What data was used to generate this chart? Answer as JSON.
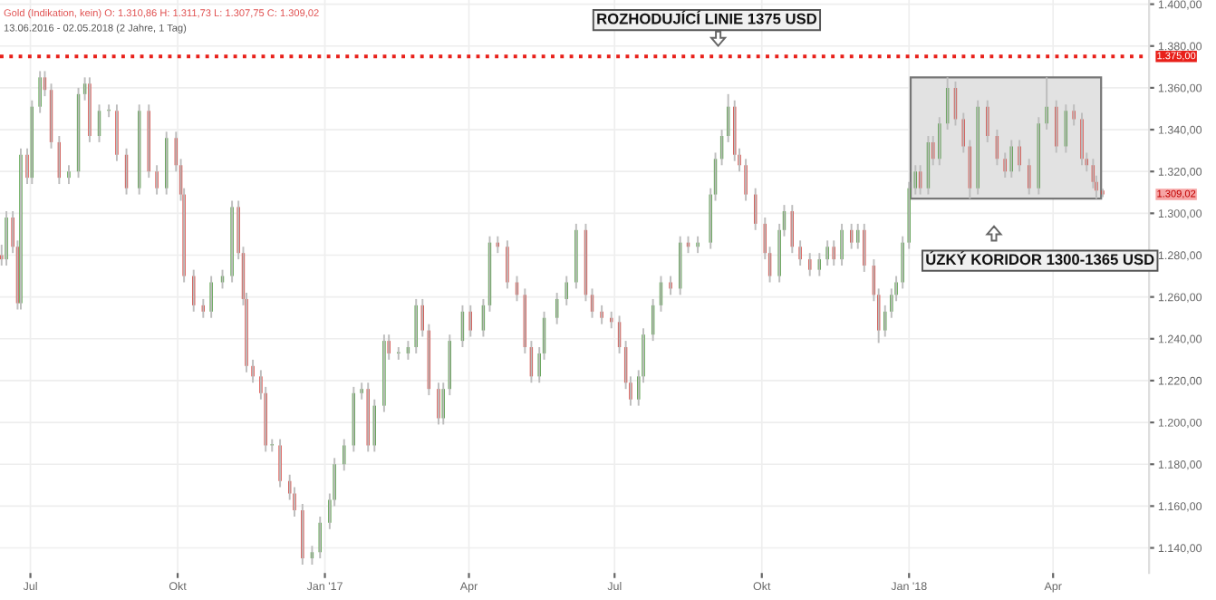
{
  "chart_data": {
    "type": "candlestick",
    "title": "Gold (Indikation, kein) O: 1.310,86 H: 1.311,73 L: 1.307,75 C: 1.309,02",
    "subtitle": "13.06.2016 - 02.05.2018 (2 Jahre, 1 Tag)",
    "colors": [
      "#d9403a",
      "#4a9a3a",
      "#d9403a",
      "#d9403a",
      "#4a9a3a",
      "#d9403a",
      "#4a9a3a",
      "#4a9a3a",
      "#d9403a",
      "#d9403a",
      "#d9403a",
      "#4a9a3a",
      "#4a9a3a",
      "#4a9a3a",
      "#d9403a",
      "#4a9a3a",
      "#4a9a3a",
      "#d9403a",
      "#d9403a",
      "#4a9a3a",
      "#d9403a",
      "#d9403a",
      "#4a9a3a",
      "#d9403a",
      "#d9403a",
      "#d9403a",
      "#d9403a",
      "#d9403a",
      "#4a9a3a",
      "#4a9a3a",
      "#4a9a3a",
      "#d9403a",
      "#d9403a",
      "#d9403a",
      "#d9403a",
      "#d9403a",
      "#d9403a",
      "#4a9a3a",
      "#d9403a",
      "#d9403a",
      "#d9403a",
      "#d9403a",
      "#4a9a3a",
      "#4a9a3a",
      "#4a9a3a",
      "#4a9a3a",
      "#4a9a3a",
      "#4a9a3a",
      "#4a9a3a",
      "#d9403a",
      "#4a9a3a",
      "#4a9a3a",
      "#d9403a",
      "#4a9a3a",
      "#4a9a3a",
      "#4a9a3a",
      "#d9403a",
      "#d9403a",
      "#d9403a",
      "#4a9a3a",
      "#4a9a3a",
      "#4a9a3a",
      "#d9403a",
      "#4a9a3a",
      "#4a9a3a",
      "#d9403a",
      "#d9403a",
      "#d9403a",
      "#d9403a",
      "#d9403a",
      "#4a9a3a",
      "#4a9a3a",
      "#4a9a3a",
      "#4a9a3a",
      "#4a9a3a",
      "#d9403a",
      "#d9403a",
      "#d9403a",
      "#d9403a",
      "#d9403a",
      "#d9403a",
      "#d9403a",
      "#4a9a3a",
      "#4a9a3a",
      "#4a9a3a",
      "#4a9a3a",
      "#d9403a",
      "#4a9a3a",
      "#d9403a",
      "#4a9a3a",
      "#4a9a3a",
      "#4a9a3a",
      "#4a9a3a",
      "#4a9a3a",
      "#d9403a",
      "#d9403a",
      "#d9403a",
      "#d9403a",
      "#d9403a",
      "#d9403a",
      "#4a9a3a",
      "#4a9a3a",
      "#d9403a",
      "#d9403a",
      "#d9403a",
      "#4a9a3a",
      "#4a9a3a",
      "#d9403a",
      "#4a9a3a",
      "#d9403a",
      "#4a9a3a",
      "#d9403a",
      "#d9403a",
      "#d9403a",
      "#4a9a3a",
      "#4a9a3a",
      "#4a9a3a",
      "#4a9a3a",
      "#4a9a3a",
      "#4a9a3a",
      "#d9403a",
      "#4a9a3a",
      "#d9403a",
      "#4a9a3a",
      "#4a9a3a",
      "#d9403a",
      "#d9403a",
      "#d9403a",
      "#4a9a3a",
      "#d9403a",
      "#d9403a",
      "#d9403a",
      "#4a9a3a",
      "#d9403a",
      "#d9403a",
      "#4a9a3a",
      "#4a9a3a",
      "#d9403a",
      "#4a9a3a",
      "#d9403a",
      "#d9403a",
      "#d9403a",
      "#d9403a",
      "#d9403a",
      "#d9403a"
    ],
    "xlim": [
      "2016-06-12",
      "2018-05-31"
    ],
    "xticks": [
      {
        "value": "2016-07-01",
        "label": "Jul"
      },
      {
        "value": "2016-10-01",
        "label": "Okt"
      },
      {
        "value": "2017-01-01",
        "label": "Jan '17"
      },
      {
        "value": "2017-04-01",
        "label": "Apr"
      },
      {
        "value": "2017-07-01",
        "label": "Jul"
      },
      {
        "value": "2017-10-01",
        "label": "Okt"
      },
      {
        "value": "2018-01-01",
        "label": "Jan '18"
      },
      {
        "value": "2018-04-01",
        "label": "Apr"
      }
    ],
    "ylim": [
      1128,
      1402
    ],
    "yticks": [
      {
        "value": 1140,
        "label": "1.140,00"
      },
      {
        "value": 1160,
        "label": "1.160,00"
      },
      {
        "value": 1180,
        "label": "1.180,00"
      },
      {
        "value": 1200,
        "label": "1.200,00"
      },
      {
        "value": 1220,
        "label": "1.220,00"
      },
      {
        "value": 1240,
        "label": "1.240,00"
      },
      {
        "value": 1260,
        "label": "1.260,00"
      },
      {
        "value": 1280,
        "label": "1.280,00"
      },
      {
        "value": 1300,
        "label": "1.300,00"
      },
      {
        "value": 1320,
        "label": "1.320,00"
      },
      {
        "value": 1340,
        "label": "1.340,00"
      },
      {
        "value": 1360,
        "label": "1.360,00"
      },
      {
        "value": 1380,
        "label": "1.380,00"
      },
      {
        "value": 1400,
        "label": "1.400,00"
      }
    ],
    "grid": true,
    "ref_lines": [
      {
        "axis": "y",
        "value": 1375,
        "label": "1.375,00",
        "color": "#e8201a",
        "line_style": "dotted"
      }
    ],
    "bands": [
      {
        "axis": "x",
        "from": "2018-01-02",
        "to": "2018-05-01",
        "color": "#e2e2e2"
      }
    ],
    "annotations": [
      "ROZHODUJÍCÍ LINIE 1375 USD",
      "ÚZKÝ KORIDOR 1300-1365 USD",
      "1.309,02"
    ],
    "x": [
      "2016-06-13",
      "2016-06-16",
      "2016-06-20",
      "2016-06-23",
      "2016-06-25",
      "2016-06-29",
      "2016-07-02",
      "2016-07-07",
      "2016-07-10",
      "2016-07-14",
      "2016-07-19",
      "2016-07-25",
      "2016-07-31",
      "2016-08-04",
      "2016-08-07",
      "2016-08-13",
      "2016-08-19",
      "2016-08-24",
      "2016-08-30",
      "2016-09-07",
      "2016-09-13",
      "2016-09-18",
      "2016-09-24",
      "2016-09-30",
      "2016-10-03",
      "2016-10-05",
      "2016-10-11",
      "2016-10-17",
      "2016-10-22",
      "2016-10-29",
      "2016-11-04",
      "2016-11-08",
      "2016-11-11",
      "2016-11-13",
      "2016-11-17",
      "2016-11-22",
      "2016-11-25",
      "2016-11-29",
      "2016-12-04",
      "2016-12-10",
      "2016-12-13",
      "2016-12-18",
      "2016-12-24",
      "2016-12-29",
      "2017-01-04",
      "2017-01-07",
      "2017-01-13",
      "2017-01-19",
      "2017-01-24",
      "2017-01-28",
      "2017-02-01",
      "2017-02-07",
      "2017-02-10",
      "2017-02-16",
      "2017-02-22",
      "2017-02-27",
      "2017-03-03",
      "2017-03-07",
      "2017-03-13",
      "2017-03-16",
      "2017-03-20",
      "2017-03-28",
      "2017-04-02",
      "2017-04-10",
      "2017-04-14",
      "2017-04-19",
      "2017-04-25",
      "2017-05-01",
      "2017-05-06",
      "2017-05-10",
      "2017-05-15",
      "2017-05-18",
      "2017-05-26",
      "2017-06-01",
      "2017-06-07",
      "2017-06-13",
      "2017-06-17",
      "2017-06-23",
      "2017-06-29",
      "2017-07-04",
      "2017-07-08",
      "2017-07-11",
      "2017-07-16",
      "2017-07-19",
      "2017-07-25",
      "2017-07-30",
      "2017-08-05",
      "2017-08-11",
      "2017-08-16",
      "2017-08-22",
      "2017-08-30",
      "2017-09-02",
      "2017-09-06",
      "2017-09-10",
      "2017-09-14",
      "2017-09-17",
      "2017-09-21",
      "2017-09-27",
      "2017-10-03",
      "2017-10-06",
      "2017-10-12",
      "2017-10-15",
      "2017-10-20",
      "2017-10-25",
      "2017-10-31",
      "2017-11-06",
      "2017-11-11",
      "2017-11-15",
      "2017-11-20",
      "2017-11-26",
      "2017-11-30",
      "2017-12-04",
      "2017-12-10",
      "2017-12-13",
      "2017-12-17",
      "2017-12-21",
      "2017-12-24",
      "2017-12-28",
      "2018-01-01",
      "2018-01-05",
      "2018-01-08",
      "2018-01-13",
      "2018-01-16",
      "2018-01-20",
      "2018-01-25",
      "2018-01-30",
      "2018-02-04",
      "2018-02-08",
      "2018-02-13",
      "2018-02-19",
      "2018-02-25",
      "2018-03-02",
      "2018-03-06",
      "2018-03-11",
      "2018-03-17",
      "2018-03-23",
      "2018-03-28",
      "2018-04-03",
      "2018-04-09",
      "2018-04-14",
      "2018-04-19",
      "2018-04-22",
      "2018-04-26",
      "2018-04-28",
      "2018-05-02"
    ],
    "ohlc": [
      [
        1280,
        1285,
        1275,
        1278
      ],
      [
        1278,
        1301,
        1275,
        1298
      ],
      [
        1298,
        1301,
        1281,
        1284
      ],
      [
        1284,
        1287,
        1254,
        1257
      ],
      [
        1257,
        1331,
        1254,
        1328
      ],
      [
        1328,
        1331,
        1314,
        1317
      ],
      [
        1317,
        1354,
        1314,
        1351
      ],
      [
        1351,
        1368,
        1348,
        1365
      ],
      [
        1365,
        1368,
        1356,
        1359
      ],
      [
        1359,
        1362,
        1331,
        1334
      ],
      [
        1334,
        1337,
        1314,
        1317
      ],
      [
        1317,
        1323,
        1314,
        1320
      ],
      [
        1320,
        1360,
        1317,
        1357
      ],
      [
        1357,
        1365,
        1354,
        1362
      ],
      [
        1362,
        1365,
        1334,
        1337
      ],
      [
        1337,
        1352,
        1334,
        1349
      ],
      [
        1349,
        1352,
        1346,
        1349
      ],
      [
        1349,
        1352,
        1325,
        1328
      ],
      [
        1328,
        1331,
        1309,
        1312
      ],
      [
        1312,
        1352,
        1309,
        1349
      ],
      [
        1349,
        1352,
        1317,
        1320
      ],
      [
        1320,
        1323,
        1309,
        1312
      ],
      [
        1312,
        1339,
        1309,
        1336
      ],
      [
        1336,
        1339,
        1320,
        1323
      ],
      [
        1323,
        1326,
        1306,
        1309
      ],
      [
        1309,
        1312,
        1267,
        1270
      ],
      [
        1270,
        1273,
        1253,
        1256
      ],
      [
        1256,
        1259,
        1250,
        1253
      ],
      [
        1253,
        1270,
        1250,
        1267
      ],
      [
        1267,
        1273,
        1264,
        1270
      ],
      [
        1270,
        1306,
        1267,
        1303
      ],
      [
        1303,
        1306,
        1278,
        1281
      ],
      [
        1281,
        1284,
        1256,
        1259
      ],
      [
        1259,
        1262,
        1224,
        1227
      ],
      [
        1227,
        1230,
        1219,
        1222
      ],
      [
        1222,
        1225,
        1211,
        1214
      ],
      [
        1214,
        1217,
        1186,
        1189
      ],
      [
        1189,
        1192,
        1186,
        1189
      ],
      [
        1189,
        1192,
        1169,
        1172
      ],
      [
        1172,
        1175,
        1163,
        1166
      ],
      [
        1166,
        1169,
        1155,
        1158
      ],
      [
        1158,
        1161,
        1132,
        1135
      ],
      [
        1135,
        1141,
        1132,
        1138
      ],
      [
        1138,
        1155,
        1135,
        1152
      ],
      [
        1152,
        1166,
        1149,
        1163
      ],
      [
        1163,
        1183,
        1160,
        1180
      ],
      [
        1180,
        1192,
        1177,
        1189
      ],
      [
        1189,
        1217,
        1186,
        1214
      ],
      [
        1214,
        1219,
        1211,
        1216
      ],
      [
        1216,
        1219,
        1186,
        1189
      ],
      [
        1189,
        1211,
        1186,
        1208
      ],
      [
        1208,
        1242,
        1205,
        1239
      ],
      [
        1239,
        1242,
        1230,
        1233
      ],
      [
        1233,
        1236,
        1230,
        1233
      ],
      [
        1233,
        1239,
        1230,
        1236
      ],
      [
        1236,
        1259,
        1233,
        1256
      ],
      [
        1256,
        1259,
        1241,
        1244
      ],
      [
        1244,
        1247,
        1213,
        1216
      ],
      [
        1216,
        1219,
        1199,
        1202
      ],
      [
        1202,
        1219,
        1199,
        1216
      ],
      [
        1216,
        1242,
        1213,
        1239
      ],
      [
        1239,
        1256,
        1236,
        1253
      ],
      [
        1253,
        1256,
        1241,
        1244
      ],
      [
        1244,
        1259,
        1241,
        1256
      ],
      [
        1256,
        1289,
        1253,
        1286
      ],
      [
        1286,
        1289,
        1281,
        1284
      ],
      [
        1284,
        1287,
        1264,
        1267
      ],
      [
        1267,
        1270,
        1258,
        1261
      ],
      [
        1261,
        1264,
        1233,
        1236
      ],
      [
        1236,
        1239,
        1219,
        1222
      ],
      [
        1222,
        1236,
        1219,
        1233
      ],
      [
        1233,
        1253,
        1230,
        1250
      ],
      [
        1250,
        1262,
        1247,
        1259
      ],
      [
        1259,
        1270,
        1256,
        1267
      ],
      [
        1267,
        1295,
        1264,
        1292
      ],
      [
        1292,
        1295,
        1258,
        1261
      ],
      [
        1261,
        1264,
        1250,
        1253
      ],
      [
        1253,
        1256,
        1247,
        1250
      ],
      [
        1250,
        1253,
        1245,
        1248
      ],
      [
        1248,
        1251,
        1233,
        1236
      ],
      [
        1236,
        1239,
        1216,
        1219
      ],
      [
        1219,
        1222,
        1208,
        1211
      ],
      [
        1211,
        1225,
        1208,
        1222
      ],
      [
        1222,
        1245,
        1219,
        1242
      ],
      [
        1242,
        1259,
        1239,
        1256
      ],
      [
        1256,
        1270,
        1253,
        1267
      ],
      [
        1267,
        1270,
        1261,
        1264
      ],
      [
        1264,
        1289,
        1261,
        1286
      ],
      [
        1286,
        1289,
        1281,
        1284
      ],
      [
        1284,
        1289,
        1281,
        1286
      ],
      [
        1286,
        1312,
        1283,
        1309
      ],
      [
        1309,
        1329,
        1306,
        1326
      ],
      [
        1326,
        1340,
        1323,
        1337
      ],
      [
        1337,
        1357,
        1334,
        1351
      ],
      [
        1351,
        1354,
        1325,
        1328
      ],
      [
        1328,
        1331,
        1320,
        1323
      ],
      [
        1323,
        1326,
        1306,
        1309
      ],
      [
        1309,
        1312,
        1292,
        1295
      ],
      [
        1295,
        1298,
        1278,
        1281
      ],
      [
        1281,
        1284,
        1267,
        1270
      ],
      [
        1270,
        1295,
        1267,
        1292
      ],
      [
        1292,
        1304,
        1289,
        1301
      ],
      [
        1301,
        1304,
        1281,
        1284
      ],
      [
        1284,
        1287,
        1275,
        1278
      ],
      [
        1278,
        1281,
        1270,
        1273
      ],
      [
        1273,
        1281,
        1270,
        1278
      ],
      [
        1278,
        1287,
        1275,
        1284
      ],
      [
        1284,
        1287,
        1275,
        1278
      ],
      [
        1278,
        1295,
        1275,
        1292
      ],
      [
        1292,
        1295,
        1283,
        1286
      ],
      [
        1286,
        1295,
        1283,
        1292
      ],
      [
        1292,
        1295,
        1272,
        1275
      ],
      [
        1275,
        1278,
        1258,
        1261
      ],
      [
        1261,
        1264,
        1238,
        1244
      ],
      [
        1244,
        1256,
        1241,
        1253
      ],
      [
        1253,
        1264,
        1250,
        1261
      ],
      [
        1261,
        1270,
        1258,
        1267
      ],
      [
        1267,
        1289,
        1264,
        1286
      ],
      [
        1286,
        1315,
        1283,
        1312
      ],
      [
        1312,
        1323,
        1309,
        1320
      ],
      [
        1320,
        1323,
        1309,
        1312
      ],
      [
        1312,
        1337,
        1309,
        1334
      ],
      [
        1334,
        1337,
        1323,
        1326
      ],
      [
        1326,
        1346,
        1323,
        1343
      ],
      [
        1343,
        1365,
        1340,
        1360
      ],
      [
        1360,
        1363,
        1342,
        1345
      ],
      [
        1345,
        1348,
        1329,
        1332
      ],
      [
        1332,
        1335,
        1307,
        1312
      ],
      [
        1312,
        1354,
        1309,
        1351
      ],
      [
        1351,
        1354,
        1334,
        1337
      ],
      [
        1337,
        1340,
        1323,
        1326
      ],
      [
        1326,
        1329,
        1317,
        1320
      ],
      [
        1320,
        1335,
        1317,
        1332
      ],
      [
        1332,
        1335,
        1320,
        1323
      ],
      [
        1323,
        1326,
        1309,
        1312
      ],
      [
        1312,
        1346,
        1309,
        1343
      ],
      [
        1343,
        1365,
        1340,
        1351
      ],
      [
        1351,
        1354,
        1329,
        1332
      ],
      [
        1332,
        1352,
        1329,
        1349
      ],
      [
        1349,
        1352,
        1342,
        1345
      ],
      [
        1345,
        1348,
        1323,
        1326
      ],
      [
        1326,
        1329,
        1320,
        1323
      ],
      [
        1323,
        1326,
        1312,
        1315
      ],
      [
        1315,
        1318,
        1307,
        1310.86
      ],
      [
        1310.86,
        1311.73,
        1307.75,
        1309.02
      ]
    ]
  }
}
